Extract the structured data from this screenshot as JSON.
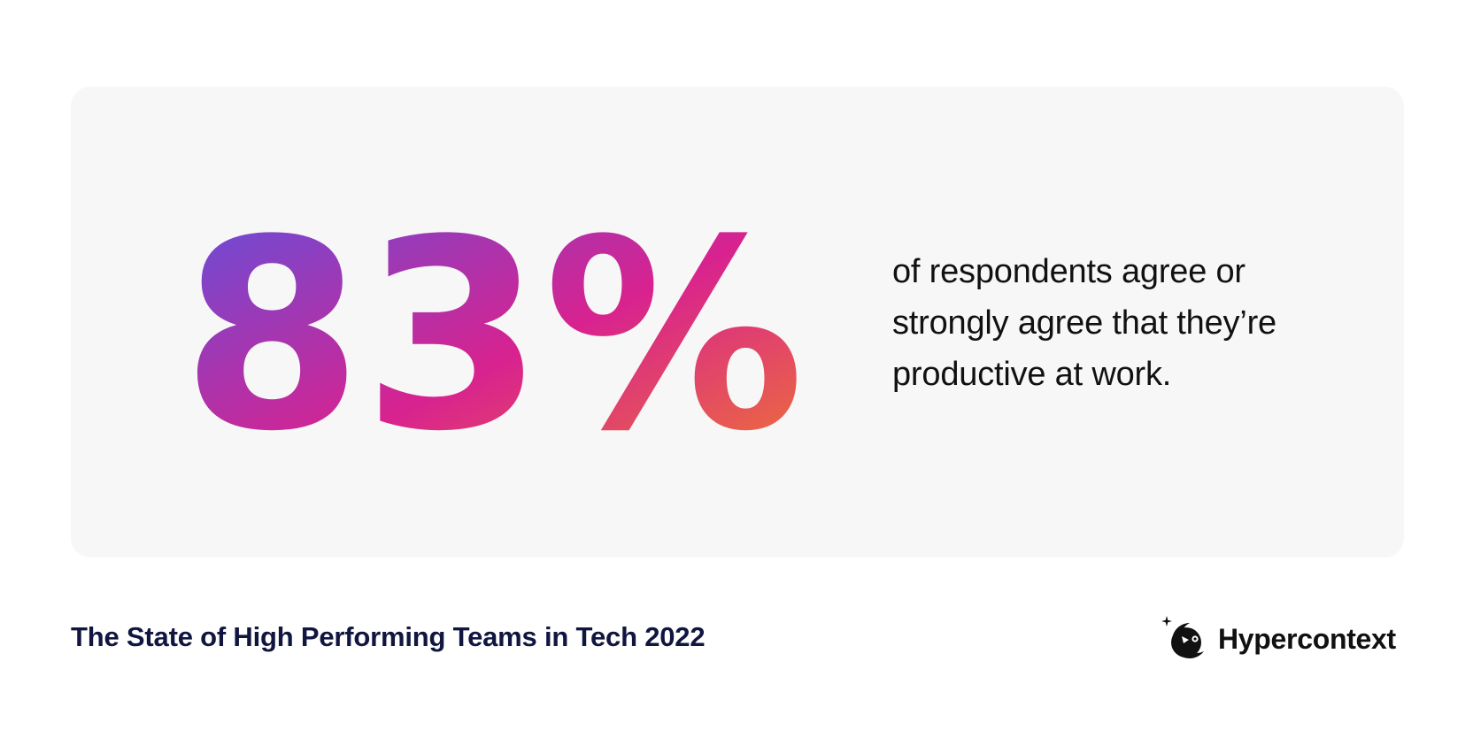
{
  "stat": {
    "value": "83%",
    "description": "of respondents agree or strongly agree that they’re productive at work."
  },
  "report": {
    "title": "The State of High Performing Teams in Tech 2022"
  },
  "brand": {
    "name": "Hypercontext",
    "logo_icon": "crescent-face-logo-icon"
  },
  "colors": {
    "card_background": "#f7f7f7",
    "gradient_start": "#5b52e0",
    "gradient_mid": "#d8228f",
    "gradient_end": "#f07a2e",
    "title_color": "#10163f",
    "text_color": "#111111"
  }
}
